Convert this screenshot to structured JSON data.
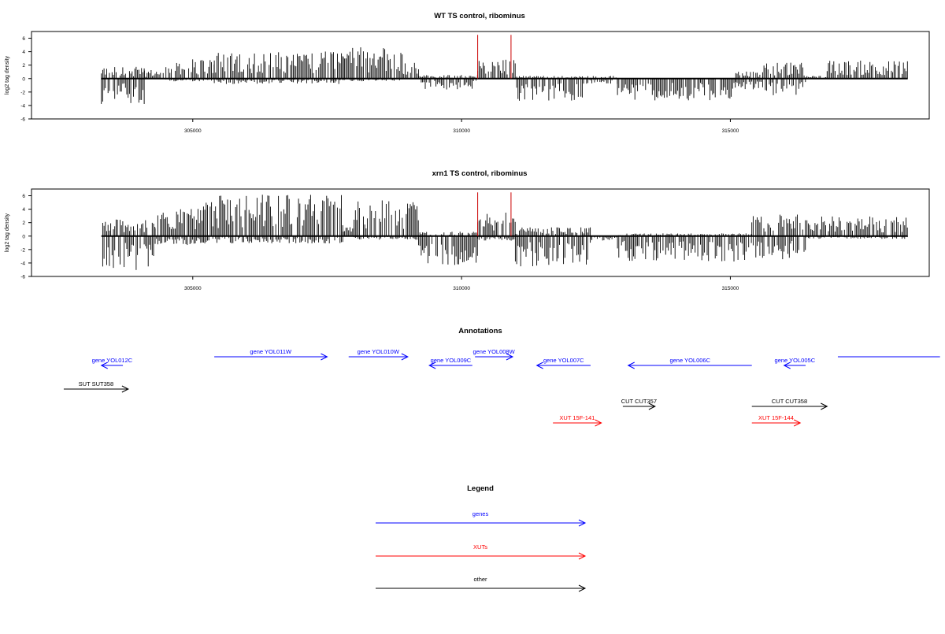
{
  "colors": {
    "gene": "#0000ff",
    "xut": "#ff0000",
    "other": "#000000",
    "highlight": "#cc0000",
    "trace": "#000000"
  },
  "chart_data": [
    {
      "type": "bar",
      "title": "WT TS control, ribominus",
      "ylabel": "log2 tag density",
      "xlim": [
        302000,
        318700
      ],
      "ylim": [
        -6,
        7
      ],
      "yticks": [
        -6,
        -4,
        -2,
        0,
        2,
        4,
        6
      ],
      "xticks": [
        305000,
        310000,
        315000
      ],
      "xtick_labels": [
        "305000",
        "310000",
        "315000"
      ],
      "data_range": [
        303300,
        318300
      ],
      "highlight_x": [
        310300,
        310920
      ],
      "highlight_values": [
        6.5,
        6.5
      ],
      "segments": [
        {
          "from": 303300,
          "to": 304100,
          "pos": 1.3,
          "neg": 2.8
        },
        {
          "from": 304100,
          "to": 304500,
          "pos": 1.0,
          "neg": 0.2
        },
        {
          "from": 304500,
          "to": 305400,
          "pos": 2.2,
          "neg": 0.3
        },
        {
          "from": 305400,
          "to": 307800,
          "pos": 3.0,
          "neg": 0.6
        },
        {
          "from": 307800,
          "to": 308900,
          "pos": 3.6,
          "neg": 0.3
        },
        {
          "from": 308900,
          "to": 309200,
          "pos": 1.8,
          "neg": 0.2
        },
        {
          "from": 309200,
          "to": 310300,
          "pos": 0.4,
          "neg": 1.2
        },
        {
          "from": 310300,
          "to": 311000,
          "pos": 2.2,
          "neg": 0.2
        },
        {
          "from": 311000,
          "to": 312300,
          "pos": 0.3,
          "neg": 2.6
        },
        {
          "from": 312300,
          "to": 312900,
          "pos": 0.3,
          "neg": 0.6
        },
        {
          "from": 312900,
          "to": 315100,
          "pos": 0.2,
          "neg": 2.4
        },
        {
          "from": 315100,
          "to": 315600,
          "pos": 0.8,
          "neg": 1.2
        },
        {
          "from": 315600,
          "to": 316400,
          "pos": 1.8,
          "neg": 2.0
        },
        {
          "from": 316400,
          "to": 316800,
          "pos": 0.3,
          "neg": 0.2
        },
        {
          "from": 316800,
          "to": 318300,
          "pos": 2.0,
          "neg": 0.2
        }
      ]
    },
    {
      "type": "bar",
      "title": "xrn1 TS control, ribominus",
      "ylabel": "log2 tag density",
      "xlim": [
        302000,
        318700
      ],
      "ylim": [
        -6,
        7
      ],
      "yticks": [
        -6,
        -4,
        -2,
        0,
        2,
        4,
        6
      ],
      "xticks": [
        305000,
        310000,
        315000
      ],
      "xtick_labels": [
        "305000",
        "310000",
        "315000"
      ],
      "data_range": [
        303300,
        318300
      ],
      "highlight_x": [
        310300,
        310920
      ],
      "highlight_values": [
        6.5,
        6.5
      ],
      "segments": [
        {
          "from": 303300,
          "to": 304300,
          "pos": 2.0,
          "neg": 3.8
        },
        {
          "from": 304300,
          "to": 305200,
          "pos": 3.0,
          "neg": 1.0
        },
        {
          "from": 305200,
          "to": 307800,
          "pos": 4.6,
          "neg": 0.8
        },
        {
          "from": 307800,
          "to": 308000,
          "pos": 1.0,
          "neg": 0.2
        },
        {
          "from": 308000,
          "to": 309200,
          "pos": 4.0,
          "neg": 0.4
        },
        {
          "from": 309200,
          "to": 310300,
          "pos": 0.5,
          "neg": 3.2
        },
        {
          "from": 310300,
          "to": 311000,
          "pos": 2.6,
          "neg": 0.5
        },
        {
          "from": 311000,
          "to": 312400,
          "pos": 1.0,
          "neg": 3.4
        },
        {
          "from": 312400,
          "to": 312900,
          "pos": 0.2,
          "neg": 0.5
        },
        {
          "from": 312900,
          "to": 315400,
          "pos": 0.3,
          "neg": 2.8
        },
        {
          "from": 315400,
          "to": 316400,
          "pos": 2.4,
          "neg": 2.6
        },
        {
          "from": 316400,
          "to": 318300,
          "pos": 2.2,
          "neg": 0.3
        }
      ]
    }
  ],
  "annotations": {
    "title": "Annotations",
    "features": [
      {
        "label": "gene YOL012C",
        "start": 303700,
        "end": 303300,
        "row": 1,
        "kind": "gene"
      },
      {
        "label": "gene YOL011W",
        "start": 305400,
        "end": 307500,
        "row": 0,
        "kind": "gene"
      },
      {
        "label": "gene YOL010W",
        "start": 307900,
        "end": 309000,
        "row": 0,
        "kind": "gene"
      },
      {
        "label": "gene YOL009C",
        "start": 310200,
        "end": 309400,
        "row": 1,
        "kind": "gene"
      },
      {
        "label": "gene YOL008W",
        "start": 310250,
        "end": 310950,
        "row": 0,
        "kind": "gene"
      },
      {
        "label": "gene YOL007C",
        "start": 312400,
        "end": 311400,
        "row": 1,
        "kind": "gene"
      },
      {
        "label": "gene YOL006C",
        "start": 315400,
        "end": 313100,
        "row": 1,
        "kind": "gene"
      },
      {
        "label": "gene YOL005C",
        "start": 316400,
        "end": 316000,
        "row": 1,
        "kind": "gene"
      },
      {
        "label": "",
        "start": 317000,
        "end": 318900,
        "row": 0,
        "kind": "gene",
        "noarrow": true
      },
      {
        "label": "SUT SUT358",
        "start": 302600,
        "end": 303800,
        "row": 2,
        "kind": "other"
      },
      {
        "label": "CUT CUT357",
        "start": 313000,
        "end": 313600,
        "row": 3,
        "kind": "other"
      },
      {
        "label": "CUT CUT358",
        "start": 315400,
        "end": 316800,
        "row": 3,
        "kind": "other"
      },
      {
        "label": "XUT 15F-141",
        "start": 311700,
        "end": 312600,
        "row": 4,
        "kind": "xut"
      },
      {
        "label": "XUT 15F-144",
        "start": 315400,
        "end": 316300,
        "row": 4,
        "kind": "xut"
      }
    ]
  },
  "legend": {
    "title": "Legend",
    "items": [
      {
        "label": "genes",
        "kind": "gene"
      },
      {
        "label": "XUTs",
        "kind": "xut"
      },
      {
        "label": "other",
        "kind": "other"
      }
    ]
  }
}
